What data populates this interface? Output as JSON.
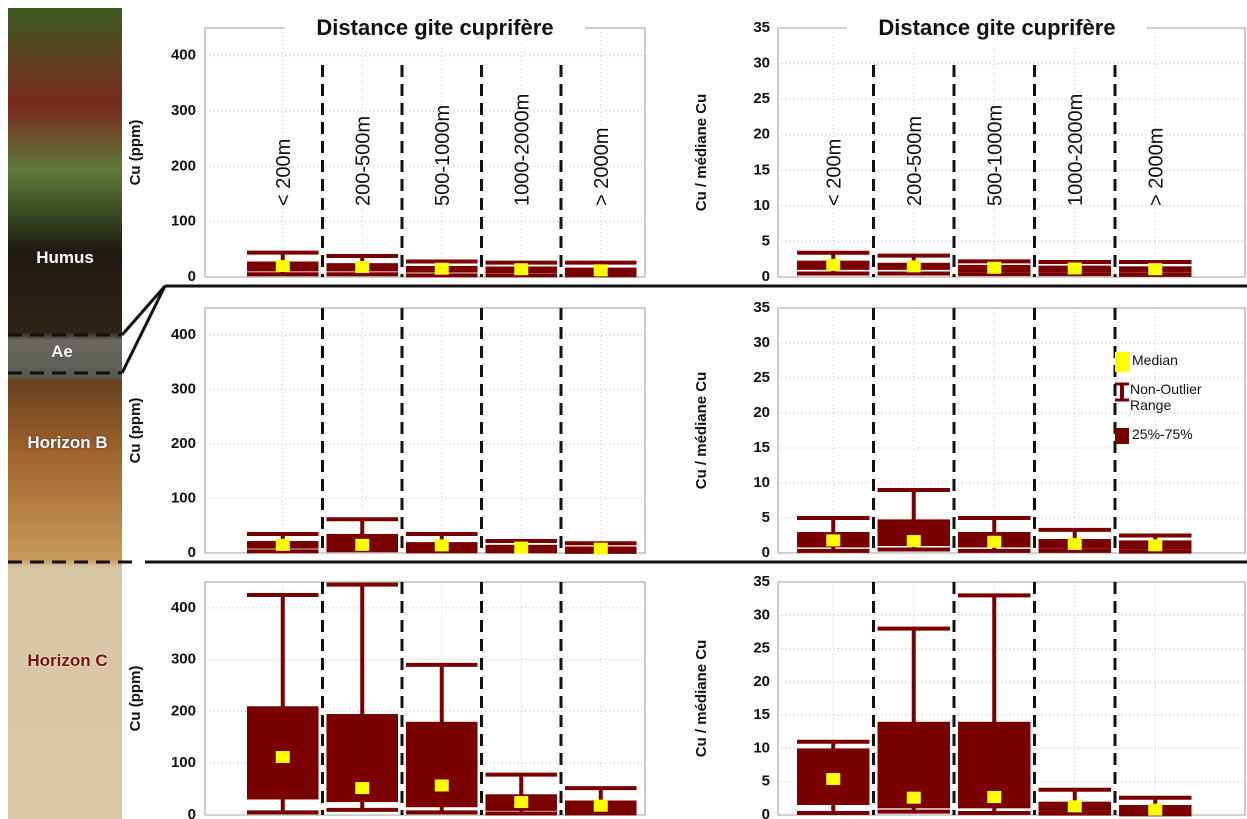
{
  "soil_column": {
    "layers": [
      "Humus",
      "Ae",
      "Horizon B",
      "Horizon C"
    ]
  },
  "chart_data": [
    {
      "type": "box",
      "title": "Distance gite cuprifère",
      "ylabel": "Cu (ppm)",
      "categories": [
        "< 200m",
        "200-500m",
        "500-1000m",
        "1000-2000m",
        "> 2000m"
      ],
      "ylim": [
        0,
        450
      ],
      "yticks": [
        0,
        100,
        200,
        300,
        400
      ],
      "grid": true,
      "box_color": "#7a0000",
      "median_color": "#ffff00",
      "stats": [
        {
          "min": 5,
          "q1": 10,
          "median": 20,
          "q3": 28,
          "max": 44
        },
        {
          "min": 5,
          "q1": 10,
          "median": 18,
          "q3": 25,
          "max": 38
        },
        {
          "min": 3,
          "q1": 8,
          "median": 15,
          "q3": 20,
          "max": 28
        },
        {
          "min": 3,
          "q1": 7,
          "median": 14,
          "q3": 19,
          "max": 26
        },
        {
          "min": 3,
          "q1": 6,
          "median": 12,
          "q3": 17,
          "max": 26
        }
      ]
    },
    {
      "type": "box",
      "title": "Distance gite cuprifère",
      "ylabel": "Cu / médiane Cu",
      "categories": [
        "< 200m",
        "200-500m",
        "500-1000m",
        "1000-2000m",
        "> 2000m"
      ],
      "ylim": [
        0,
        35
      ],
      "yticks": [
        0,
        5,
        10,
        15,
        20,
        25,
        30,
        35
      ],
      "grid": true,
      "box_color": "#7a0000",
      "median_color": "#ffff00",
      "stats": [
        {
          "min": 0.5,
          "q1": 1,
          "median": 1.7,
          "q3": 2.3,
          "max": 3.4
        },
        {
          "min": 0.5,
          "q1": 1,
          "median": 1.5,
          "q3": 2,
          "max": 3
        },
        {
          "min": 0.4,
          "q1": 0.7,
          "median": 1.3,
          "q3": 1.7,
          "max": 2.2
        },
        {
          "min": 0.4,
          "q1": 0.7,
          "median": 1.2,
          "q3": 1.6,
          "max": 2.1
        },
        {
          "min": 0.3,
          "q1": 0.6,
          "median": 1.1,
          "q3": 1.5,
          "max": 2.1
        }
      ]
    },
    {
      "type": "box",
      "ylabel": "Cu (ppm)",
      "ylim": [
        0,
        450
      ],
      "yticks": [
        0,
        100,
        200,
        300,
        400
      ],
      "grid": true,
      "box_color": "#7a0000",
      "median_color": "#ffff00",
      "stats": [
        {
          "min": 3,
          "q1": 8,
          "median": 15,
          "q3": 22,
          "max": 35
        },
        {
          "min": 5,
          "q1": 8,
          "median": 15,
          "q3": 35,
          "max": 62
        },
        {
          "min": 3,
          "q1": 6,
          "median": 14,
          "q3": 20,
          "max": 35
        },
        {
          "min": 3,
          "q1": 6,
          "median": 10,
          "q3": 15,
          "max": 22
        },
        {
          "min": 2,
          "q1": 5,
          "median": 8,
          "q3": 12,
          "max": 18
        }
      ]
    },
    {
      "type": "box",
      "ylabel": "Cu / médiane Cu",
      "ylim": [
        0,
        35
      ],
      "yticks": [
        0,
        5,
        10,
        15,
        20,
        25,
        30,
        35
      ],
      "grid": true,
      "box_color": "#7a0000",
      "median_color": "#ffff00",
      "legend": [
        "Median",
        "Non-Outlier Range",
        "25%-75%"
      ],
      "stats": [
        {
          "min": 0.3,
          "q1": 0.8,
          "median": 1.8,
          "q3": 3,
          "max": 5
        },
        {
          "min": 0.5,
          "q1": 1,
          "median": 1.7,
          "q3": 4.8,
          "max": 9
        },
        {
          "min": 0.3,
          "q1": 0.8,
          "median": 1.6,
          "q3": 3,
          "max": 5
        },
        {
          "min": 0.3,
          "q1": 0.6,
          "median": 1.3,
          "q3": 2,
          "max": 3.3
        },
        {
          "min": 0.2,
          "q1": 0.5,
          "median": 1.1,
          "q3": 1.8,
          "max": 2.5
        }
      ]
    },
    {
      "type": "box",
      "ylabel": "Cu (ppm)",
      "ylim": [
        0,
        450
      ],
      "yticks": [
        0,
        100,
        200,
        300,
        400
      ],
      "grid": true,
      "box_color": "#7a0000",
      "median_color": "#ffff00",
      "stats": [
        {
          "min": 5,
          "q1": 30,
          "median": 112,
          "q3": 210,
          "max": 425
        },
        {
          "min": 10,
          "q1": 25,
          "median": 52,
          "q3": 195,
          "max": 445
        },
        {
          "min": 5,
          "q1": 15,
          "median": 57,
          "q3": 180,
          "max": 290
        },
        {
          "min": 3,
          "q1": 8,
          "median": 25,
          "q3": 40,
          "max": 78
        },
        {
          "min": 3,
          "q1": 6,
          "median": 18,
          "q3": 28,
          "max": 52
        }
      ]
    },
    {
      "type": "box",
      "ylabel": "Cu / médiane Cu",
      "ylim": [
        0,
        35
      ],
      "yticks": [
        0,
        5,
        10,
        15,
        20,
        25,
        30,
        35
      ],
      "grid": true,
      "box_color": "#7a0000",
      "median_color": "#ffff00",
      "stats": [
        {
          "min": 0.3,
          "q1": 1.5,
          "median": 5.4,
          "q3": 10,
          "max": 11
        },
        {
          "min": 0.5,
          "q1": 1,
          "median": 2.6,
          "q3": 14,
          "max": 28
        },
        {
          "min": 0.3,
          "q1": 1,
          "median": 2.7,
          "q3": 14,
          "max": 33
        },
        {
          "min": 0.2,
          "q1": 0.5,
          "median": 1.3,
          "q3": 2,
          "max": 3.8
        },
        {
          "min": 0.1,
          "q1": 0.3,
          "median": 0.8,
          "q3": 1.5,
          "max": 2.6
        }
      ]
    }
  ]
}
